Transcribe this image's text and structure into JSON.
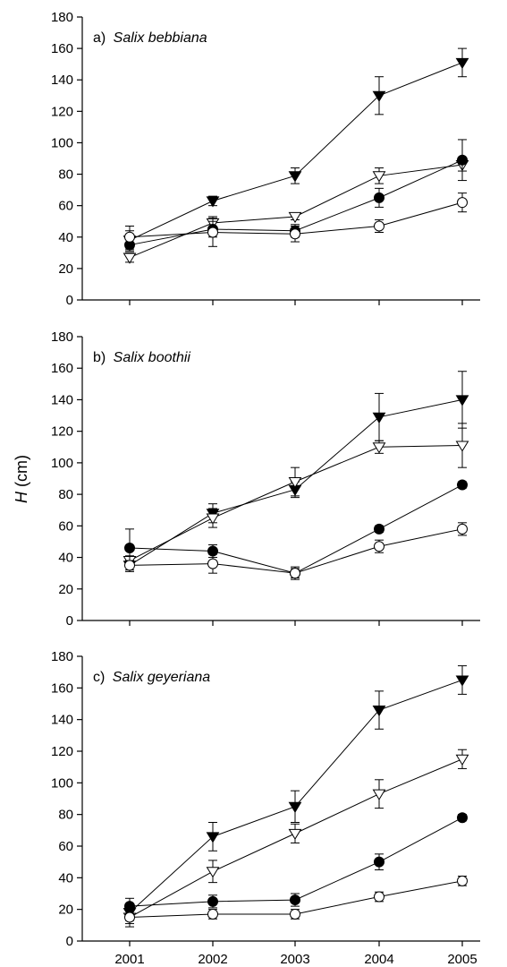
{
  "ylabel_italic": "H",
  "ylabel_unit": " (cm)",
  "x_tick_labels": [
    "2001",
    "2002",
    "2003",
    "2004",
    "2005"
  ],
  "chart_data": [
    {
      "type": "line",
      "panel_prefix": "a) ",
      "species": "Salix bebbiana",
      "x": [
        2001,
        2002,
        2003,
        2004,
        2005
      ],
      "ylim": [
        0,
        180
      ],
      "yticks": [
        0,
        20,
        40,
        60,
        80,
        100,
        120,
        140,
        160,
        180
      ],
      "series": [
        {
          "marker": "triangle-down-filled",
          "values": [
            38,
            63,
            79,
            130,
            151
          ],
          "errors": [
            6,
            3,
            5,
            12,
            9
          ]
        },
        {
          "marker": "triangle-down-open",
          "values": [
            27,
            49,
            53,
            79,
            86
          ],
          "errors": [
            3,
            4,
            2,
            5,
            4
          ]
        },
        {
          "marker": "circle-filled",
          "values": [
            35,
            45,
            44,
            65,
            89
          ],
          "errors": [
            4,
            5,
            4,
            6,
            13
          ]
        },
        {
          "marker": "circle-open",
          "values": [
            40,
            43,
            42,
            47,
            62
          ],
          "errors": [
            7,
            9,
            5,
            4,
            6
          ]
        }
      ]
    },
    {
      "type": "line",
      "panel_prefix": "b) ",
      "species": "Salix boothii",
      "x": [
        2001,
        2002,
        2003,
        2004,
        2005
      ],
      "ylim": [
        0,
        180
      ],
      "yticks": [
        0,
        20,
        40,
        60,
        80,
        100,
        120,
        140,
        160,
        180
      ],
      "series": [
        {
          "marker": "triangle-down-filled",
          "values": [
            35,
            68,
            83,
            129,
            140
          ],
          "errors": [
            4,
            6,
            5,
            15,
            18
          ]
        },
        {
          "marker": "triangle-down-open",
          "values": [
            38,
            65,
            88,
            110,
            111
          ],
          "errors": [
            3,
            6,
            9,
            4,
            14
          ]
        },
        {
          "marker": "circle-filled",
          "values": [
            46,
            44,
            30,
            58,
            86
          ],
          "errors": [
            12,
            4,
            3,
            2,
            2
          ]
        },
        {
          "marker": "circle-open",
          "values": [
            35,
            36,
            30,
            47,
            58
          ],
          "errors": [
            3,
            6,
            4,
            4,
            4
          ]
        }
      ]
    },
    {
      "type": "line",
      "panel_prefix": "c) ",
      "species": "Salix geyeriana",
      "x": [
        2001,
        2002,
        2003,
        2004,
        2005
      ],
      "ylim": [
        0,
        180
      ],
      "yticks": [
        0,
        20,
        40,
        60,
        80,
        100,
        120,
        140,
        160,
        180
      ],
      "series": [
        {
          "marker": "triangle-down-filled",
          "values": [
            18,
            66,
            85,
            146,
            165
          ],
          "errors": [
            5,
            9,
            10,
            12,
            9
          ]
        },
        {
          "marker": "triangle-down-open",
          "values": [
            15,
            44,
            68,
            93,
            115
          ],
          "errors": [
            4,
            7,
            6,
            9,
            6
          ]
        },
        {
          "marker": "circle-filled",
          "values": [
            22,
            25,
            26,
            50,
            78
          ],
          "errors": [
            5,
            4,
            4,
            5,
            2
          ]
        },
        {
          "marker": "circle-open",
          "values": [
            15,
            17,
            17,
            28,
            38
          ],
          "errors": [
            6,
            3,
            3,
            3,
            3
          ]
        }
      ]
    }
  ]
}
